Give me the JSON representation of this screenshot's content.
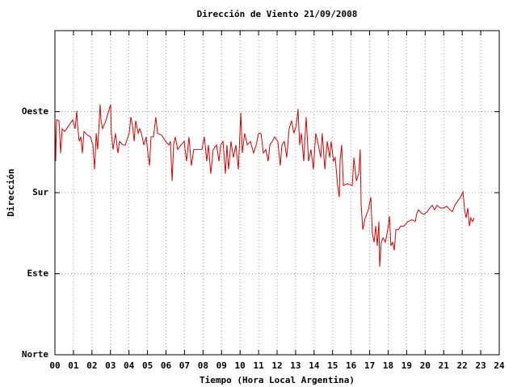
{
  "chart_data": {
    "type": "line",
    "title": "Dirección de Viento 21/09/2008",
    "x_label": "Tiempo (Hora Local Argentina)",
    "y_label": "Dirección",
    "color": "#e00000",
    "grid": true,
    "xlim": [
      0,
      24
    ],
    "ylim": [
      0,
      360
    ],
    "xticks": [
      {
        "value": 0,
        "label": "00"
      },
      {
        "value": 1,
        "label": "01"
      },
      {
        "value": 2,
        "label": "02"
      },
      {
        "value": 3,
        "label": "03"
      },
      {
        "value": 4,
        "label": "04"
      },
      {
        "value": 5,
        "label": "05"
      },
      {
        "value": 6,
        "label": "06"
      },
      {
        "value": 7,
        "label": "07"
      },
      {
        "value": 8,
        "label": "08"
      },
      {
        "value": 9,
        "label": "09"
      },
      10,
      11,
      12,
      13,
      14,
      15,
      16,
      17,
      18,
      19,
      20,
      21,
      22,
      23,
      24
    ],
    "yticks": [
      {
        "value": 0,
        "label": "Norte"
      },
      {
        "value": 90,
        "label": "Este"
      },
      {
        "value": 180,
        "label": "Sur"
      },
      {
        "value": 270,
        "label": "Oeste"
      }
    ],
    "x": [
      0,
      0.04,
      0.09,
      0.22,
      0.31,
      0.39,
      0.52,
      0.7,
      0.96,
      1.09,
      1.18,
      1.22,
      1.31,
      1.4,
      1.48,
      1.57,
      1.75,
      1.92,
      2.05,
      2.14,
      2.23,
      2.31,
      2.44,
      2.49,
      2.57,
      2.75,
      3.01,
      3.05,
      3.14,
      3.27,
      3.4,
      3.49,
      3.67,
      3.8,
      4.01,
      4.1,
      4.19,
      4.28,
      4.36,
      4.5,
      4.58,
      4.67,
      4.8,
      4.93,
      5.02,
      5.11,
      5.19,
      5.32,
      5.45,
      5.54,
      5.76,
      5.98,
      6.15,
      6.24,
      6.33,
      6.41,
      6.5,
      6.63,
      6.81,
      6.98,
      7.11,
      7.24,
      7.37,
      7.5,
      7.72,
      7.94,
      8.07,
      8.2,
      8.29,
      8.42,
      8.55,
      8.73,
      8.86,
      8.95,
      9.08,
      9.21,
      9.29,
      9.38,
      9.51,
      9.64,
      9.77,
      9.91,
      10.04,
      10.12,
      10.25,
      10.39,
      10.56,
      10.73,
      10.87,
      11.0,
      11.13,
      11.26,
      11.39,
      11.52,
      11.61,
      11.74,
      11.87,
      12.04,
      12.17,
      12.26,
      12.39,
      12.52,
      12.65,
      12.78,
      12.91,
      13.04,
      13.13,
      13.22,
      13.31,
      13.44,
      13.57,
      13.7,
      13.83,
      13.96,
      14.09,
      14.23,
      14.36,
      14.44,
      14.58,
      14.71,
      14.84,
      14.92,
      15.05,
      15.14,
      15.27,
      15.36,
      15.4,
      15.49,
      15.58,
      15.8,
      16.06,
      16.15,
      16.28,
      16.41,
      16.49,
      16.54,
      16.63,
      16.76,
      16.93,
      17.06,
      17.15,
      17.24,
      17.33,
      17.41,
      17.5,
      17.54,
      17.63,
      17.72,
      17.85,
      17.98,
      18.07,
      18.15,
      18.24,
      18.33,
      18.42,
      18.55,
      18.68,
      18.85,
      19.07,
      19.29,
      19.46,
      19.55,
      19.64,
      19.81,
      19.94,
      20.12,
      20.25,
      20.38,
      20.51,
      20.64,
      20.82,
      20.99,
      21.17,
      21.34,
      21.47,
      21.6,
      21.73,
      21.91,
      22.04,
      22.13,
      22.21,
      22.3,
      22.39,
      22.47,
      22.56,
      22.65
    ],
    "values": [
      260,
      215,
      261,
      260,
      224,
      251,
      248,
      253,
      261,
      251,
      271,
      255,
      237,
      242,
      224,
      248,
      244,
      242,
      233,
      206,
      246,
      228,
      278,
      260,
      251,
      260,
      278,
      246,
      228,
      246,
      224,
      237,
      233,
      233,
      246,
      264,
      255,
      237,
      260,
      246,
      251,
      246,
      233,
      242,
      224,
      210,
      242,
      242,
      264,
      246,
      244,
      237,
      233,
      237,
      193,
      233,
      242,
      228,
      233,
      237,
      215,
      242,
      210,
      228,
      228,
      228,
      242,
      215,
      233,
      201,
      228,
      233,
      215,
      233,
      237,
      201,
      233,
      206,
      237,
      219,
      233,
      206,
      269,
      224,
      246,
      233,
      237,
      224,
      233,
      246,
      246,
      224,
      228,
      215,
      233,
      237,
      242,
      237,
      210,
      233,
      237,
      219,
      251,
      260,
      246,
      255,
      273,
      233,
      246,
      215,
      264,
      215,
      228,
      206,
      246,
      233,
      219,
      246,
      206,
      237,
      219,
      237,
      215,
      219,
      188,
      175,
      215,
      233,
      188,
      190,
      188,
      219,
      193,
      201,
      228,
      166,
      139,
      152,
      161,
      175,
      134,
      125,
      143,
      121,
      148,
      98,
      125,
      130,
      125,
      139,
      154,
      121,
      125,
      116,
      139,
      139,
      143,
      143,
      148,
      150,
      148,
      157,
      161,
      157,
      156,
      159,
      163,
      166,
      161,
      166,
      163,
      163,
      165,
      161,
      159,
      166,
      170,
      175,
      181,
      161,
      152,
      163,
      143,
      152,
      148,
      152
    ]
  }
}
